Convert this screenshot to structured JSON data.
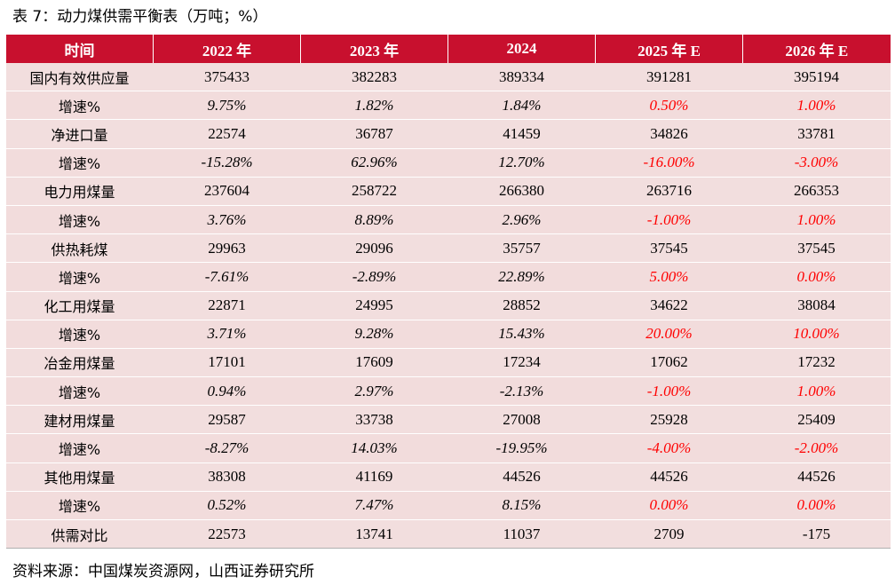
{
  "title": "表 7：动力煤供需平衡表（万吨；%）",
  "header": [
    "时间",
    "2022 年",
    "2023 年",
    "2024",
    "2025 年 E",
    "2026 年 E"
  ],
  "rows": [
    {
      "label": "国内有效供应量",
      "values": [
        "375433",
        "382283",
        "389334",
        "391281",
        "395194"
      ]
    },
    {
      "label": "增速%",
      "values": [
        "9.75%",
        "1.82%",
        "1.84%",
        "0.50%",
        "1.00%"
      ]
    },
    {
      "label": "净进口量",
      "values": [
        "22574",
        "36787",
        "41459",
        "34826",
        "33781"
      ]
    },
    {
      "label": "增速%",
      "values": [
        "-15.28%",
        "62.96%",
        "12.70%",
        "-16.00%",
        "-3.00%"
      ]
    },
    {
      "label": "电力用煤量",
      "values": [
        "237604",
        "258722",
        "266380",
        "263716",
        "266353"
      ]
    },
    {
      "label": "增速%",
      "values": [
        "3.76%",
        "8.89%",
        "2.96%",
        "-1.00%",
        "1.00%"
      ]
    },
    {
      "label": "供热耗煤",
      "values": [
        "29963",
        "29096",
        "35757",
        "37545",
        "37545"
      ]
    },
    {
      "label": "增速%",
      "values": [
        "-7.61%",
        "-2.89%",
        "22.89%",
        "5.00%",
        "0.00%"
      ]
    },
    {
      "label": "化工用煤量",
      "values": [
        "22871",
        "24995",
        "28852",
        "34622",
        "38084"
      ]
    },
    {
      "label": "增速%",
      "values": [
        "3.71%",
        "9.28%",
        "15.43%",
        "20.00%",
        "10.00%"
      ]
    },
    {
      "label": "冶金用煤量",
      "values": [
        "17101",
        "17609",
        "17234",
        "17062",
        "17232"
      ]
    },
    {
      "label": "增速%",
      "values": [
        "0.94%",
        "2.97%",
        "-2.13%",
        "-1.00%",
        "1.00%"
      ]
    },
    {
      "label": "建材用煤量",
      "values": [
        "29587",
        "33738",
        "27008",
        "25928",
        "25409"
      ]
    },
    {
      "label": "增速%",
      "values": [
        "-8.27%",
        "14.03%",
        "-19.95%",
        "-4.00%",
        "-2.00%"
      ]
    },
    {
      "label": "其他用煤量",
      "values": [
        "38308",
        "41169",
        "44526",
        "44526",
        "44526"
      ]
    },
    {
      "label": "增速%",
      "values": [
        "0.52%",
        "7.47%",
        "8.15%",
        "0.00%",
        "0.00%"
      ]
    },
    {
      "label": "供需对比",
      "values": [
        "22573",
        "13741",
        "11037",
        "2709",
        "-175"
      ]
    }
  ],
  "source": "资料来源：中国煤炭资源网，山西证券研究所",
  "colors": {
    "header_bg": "#c8102e",
    "row_bg": "#f2dede",
    "forecast_growth_text": "#ff0000"
  }
}
